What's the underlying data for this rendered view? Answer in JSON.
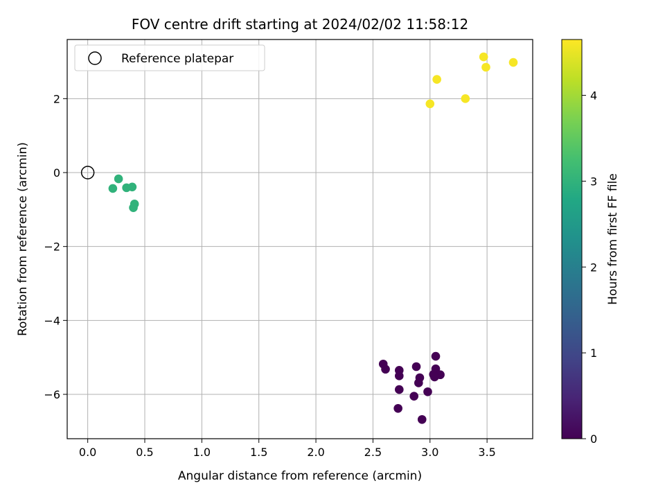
{
  "chart_data": {
    "type": "scatter",
    "title": "FOV centre drift starting at 2024/02/02 11:58:12",
    "xlabel": "Angular distance from reference (arcmin)",
    "ylabel": "Rotation from reference (arcmin)",
    "xlim": [
      -0.18,
      3.9
    ],
    "ylim": [
      -7.2,
      3.6
    ],
    "x_ticks": [
      0.0,
      0.5,
      1.0,
      1.5,
      2.0,
      2.5,
      3.0,
      3.5
    ],
    "x_tick_labels": [
      "0.0",
      "0.5",
      "1.0",
      "1.5",
      "2.0",
      "2.5",
      "3.0",
      "3.5"
    ],
    "y_ticks": [
      -6,
      -4,
      -2,
      0,
      2
    ],
    "y_tick_labels": [
      "−6",
      "−4",
      "−2",
      "0",
      "2"
    ],
    "grid": true,
    "legend": {
      "placement": "top-left",
      "label": "Reference platepar"
    },
    "reference_point": {
      "x": 0.0,
      "y": 0.0
    },
    "colorbar": {
      "label": "Hours from first FF file",
      "range": [
        0,
        4.65
      ],
      "ticks": [
        0,
        1,
        2,
        3,
        4
      ],
      "tick_labels": [
        "0",
        "1",
        "2",
        "3",
        "4"
      ],
      "colormap": "viridis"
    },
    "points": [
      {
        "x": 3.05,
        "y": -4.97,
        "c": 0.0
      },
      {
        "x": 2.59,
        "y": -5.18,
        "c": 0.0
      },
      {
        "x": 2.61,
        "y": -5.32,
        "c": 0.0
      },
      {
        "x": 2.73,
        "y": -5.35,
        "c": 0.0
      },
      {
        "x": 2.88,
        "y": -5.25,
        "c": 0.0
      },
      {
        "x": 3.05,
        "y": -5.31,
        "c": 0.0
      },
      {
        "x": 3.03,
        "y": -5.46,
        "c": 0.0
      },
      {
        "x": 3.09,
        "y": -5.47,
        "c": 0.0
      },
      {
        "x": 3.04,
        "y": -5.53,
        "c": 0.0
      },
      {
        "x": 2.73,
        "y": -5.5,
        "c": 0.0
      },
      {
        "x": 2.91,
        "y": -5.55,
        "c": 0.0
      },
      {
        "x": 2.9,
        "y": -5.69,
        "c": 0.0
      },
      {
        "x": 2.73,
        "y": -5.87,
        "c": 0.0
      },
      {
        "x": 2.98,
        "y": -5.93,
        "c": 0.0
      },
      {
        "x": 2.86,
        "y": -6.05,
        "c": 0.0
      },
      {
        "x": 2.72,
        "y": -6.38,
        "c": 0.0
      },
      {
        "x": 2.93,
        "y": -6.68,
        "c": 0.0
      },
      {
        "x": 0.22,
        "y": -0.43,
        "c": 3.0
      },
      {
        "x": 0.27,
        "y": -0.17,
        "c": 3.0
      },
      {
        "x": 0.34,
        "y": -0.41,
        "c": 3.0
      },
      {
        "x": 0.39,
        "y": -0.39,
        "c": 3.0
      },
      {
        "x": 0.41,
        "y": -0.85,
        "c": 3.0
      },
      {
        "x": 0.4,
        "y": -0.95,
        "c": 3.0
      },
      {
        "x": 3.06,
        "y": 2.52,
        "c": 4.6
      },
      {
        "x": 3.0,
        "y": 1.86,
        "c": 4.6
      },
      {
        "x": 3.31,
        "y": 2.0,
        "c": 4.6
      },
      {
        "x": 3.47,
        "y": 3.13,
        "c": 4.6
      },
      {
        "x": 3.49,
        "y": 2.85,
        "c": 4.6
      },
      {
        "x": 3.73,
        "y": 2.98,
        "c": 4.6
      }
    ]
  }
}
